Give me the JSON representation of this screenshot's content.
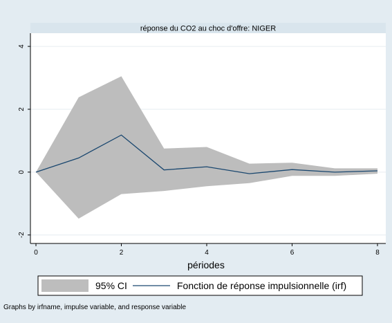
{
  "chart_data": {
    "type": "area",
    "title": "réponse du CO2 au choc d'offre: NIGER",
    "xlabel": "périodes",
    "ylabel": "",
    "x": [
      0,
      1,
      2,
      3,
      4,
      5,
      6,
      7,
      8
    ],
    "xlim": [
      0,
      8
    ],
    "ylim": [
      -2.05,
      4.2
    ],
    "xticks": [
      "0",
      "2",
      "4",
      "6",
      "8"
    ],
    "yticks": [
      "4",
      "2",
      "0",
      "-2"
    ],
    "grid": "horizontal",
    "legend_position": "bottom",
    "series": [
      {
        "name": "95% CI",
        "kind": "band",
        "color": "#bdbdbd",
        "lower": [
          0,
          -1.48,
          -0.7,
          -0.6,
          -0.45,
          -0.35,
          -0.12,
          -0.12,
          -0.05
        ],
        "upper": [
          0,
          2.38,
          3.05,
          0.75,
          0.8,
          0.27,
          0.3,
          0.12,
          0.12
        ]
      },
      {
        "name": "Fonction de réponse impulsionnelle (irf)",
        "kind": "line",
        "color": "#1a476f",
        "values": [
          0,
          0.45,
          1.18,
          0.07,
          0.17,
          -0.05,
          0.08,
          0.0,
          0.04
        ]
      }
    ],
    "note": "Graphs by irfname, impulse variable, and response variable"
  }
}
